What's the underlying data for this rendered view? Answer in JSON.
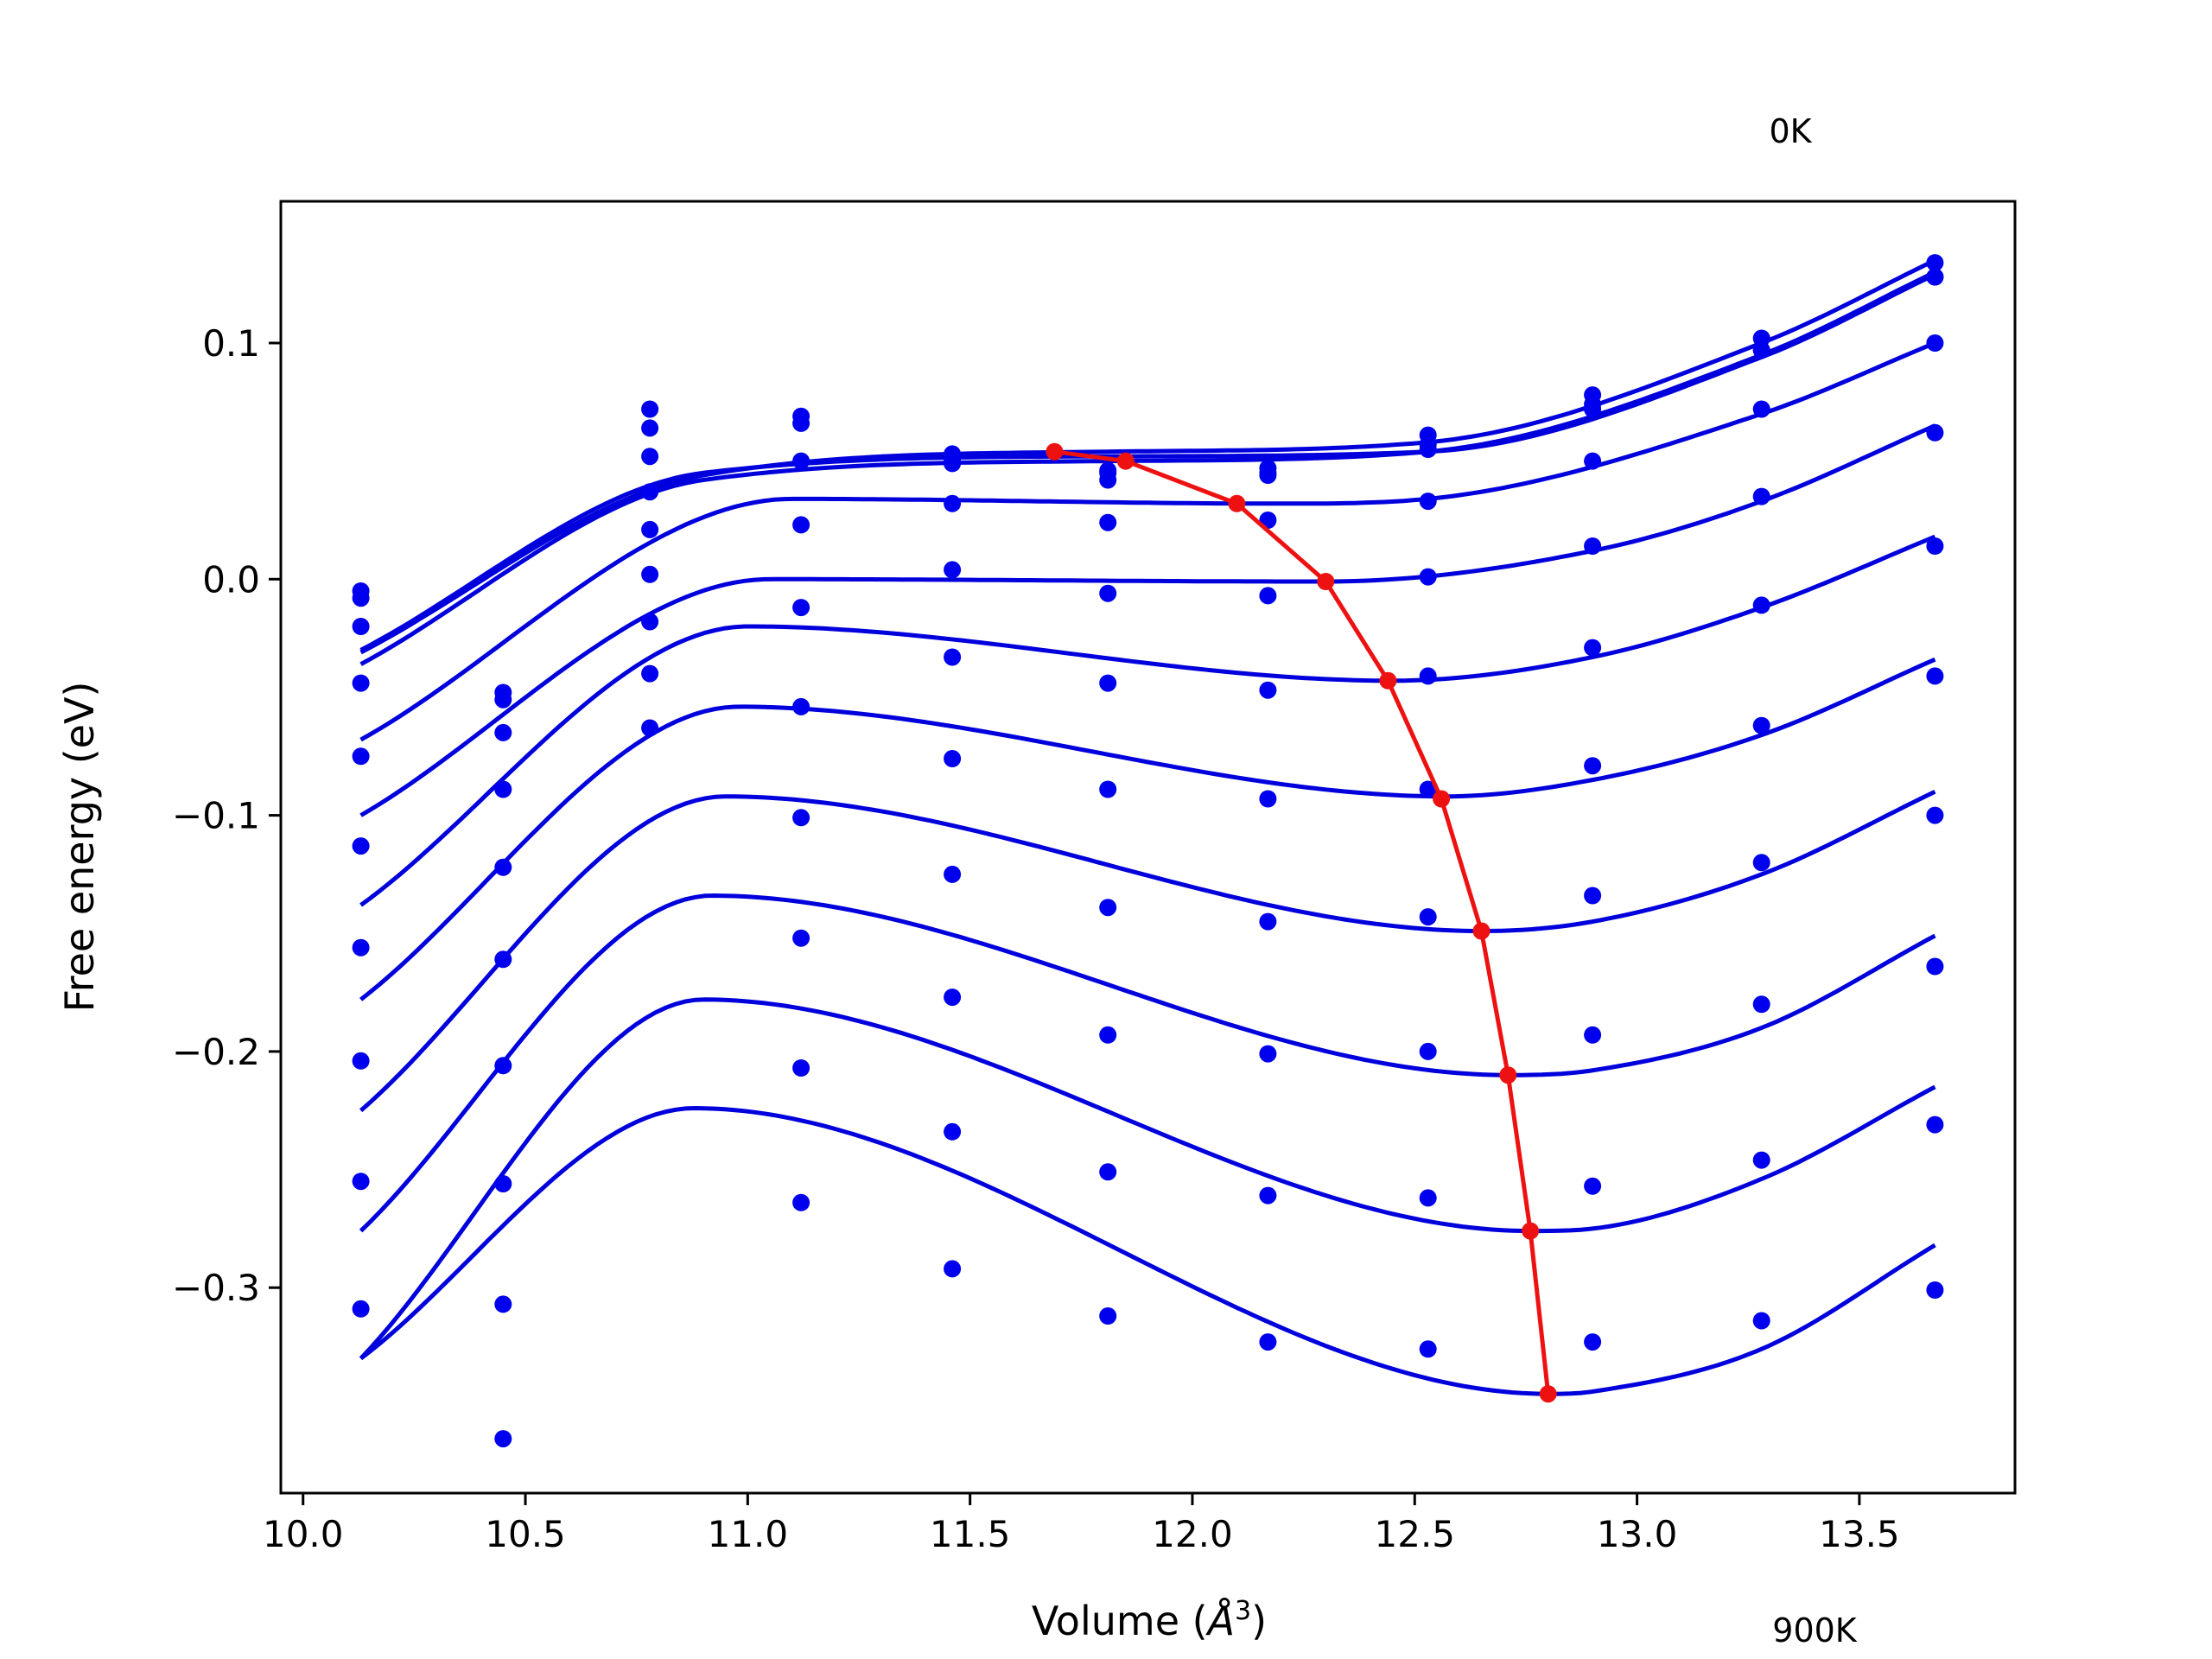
{
  "chart_data": {
    "type": "scatter",
    "xlabel_prefix": "Volume (",
    "xlabel_unit": "Å",
    "xlabel_exp": "3",
    "xlabel_suffix": ")",
    "ylabel": "Free energy (eV)",
    "xlim": [
      9.95,
      13.85
    ],
    "ylim": [
      -0.387,
      0.16
    ],
    "xticks": [
      10.0,
      10.5,
      11.0,
      11.5,
      12.0,
      12.5,
      13.0,
      13.5
    ],
    "xtick_labels": [
      "10.0",
      "10.5",
      "11.0",
      "11.5",
      "12.0",
      "12.5",
      "13.0",
      "13.5"
    ],
    "yticks": [
      0.1,
      0.0,
      -0.1,
      -0.2,
      -0.3
    ],
    "ytick_labels": [
      "0.1",
      "0.0",
      "−0.1",
      "−0.2",
      "−0.3"
    ],
    "temperature_labels": {
      "top": "0K",
      "bottom": "900K"
    },
    "grid": false,
    "colors": {
      "points": "#0000ee",
      "fits": "#0000dd",
      "minimum": "#ee1111"
    },
    "fit_x_range": [
      10.13,
      13.67
    ],
    "volumes": [
      10.13,
      10.45,
      10.78,
      11.12,
      11.46,
      11.81,
      12.17,
      12.53,
      12.9,
      13.28,
      13.67
    ],
    "series": [
      {
        "energies": [
          -0.005,
          null,
          0.072,
          0.069,
          0.053,
          0.046,
          0.047,
          0.061,
          0.078,
          0.102,
          0.134
        ],
        "fit": {
          "points": [
            [
              10.13,
              -0.031
            ],
            [
              10.9,
              0.044
            ],
            [
              11.81,
              0.054
            ],
            [
              12.53,
              0.058
            ],
            [
              13.28,
              0.1
            ],
            [
              13.67,
              0.135
            ]
          ]
        }
      },
      {
        "energies": [
          -0.008,
          null,
          0.064,
          0.066,
          0.05,
          0.042,
          0.044,
          0.057,
          0.074,
          0.097,
          0.128
        ],
        "fit": {
          "points": [
            [
              10.13,
              -0.036
            ],
            [
              10.9,
              0.042
            ],
            [
              11.81,
              0.05
            ],
            [
              12.53,
              0.054
            ],
            [
              13.28,
              0.095
            ],
            [
              13.67,
              0.13
            ]
          ]
        }
      },
      {
        "energies": [
          -0.02,
          null,
          0.052,
          0.05,
          0.049,
          0.045,
          0.045,
          0.055,
          0.072,
          0.097,
          0.128
        ],
        "fit": {
          "points": [
            [
              10.13,
              -0.03
            ],
            [
              10.9,
              0.045
            ],
            [
              11.81,
              0.052
            ],
            [
              12.53,
              0.054
            ],
            [
              13.28,
              0.094
            ],
            [
              13.67,
              0.129
            ]
          ]
        }
      },
      {
        "energies": [
          -0.044,
          null,
          0.037,
          0.023,
          0.032,
          0.024,
          0.025,
          0.033,
          0.05,
          0.072,
          0.1
        ],
        "fit": {
          "points": [
            [
              10.13,
              -0.068
            ],
            [
              11.1,
              0.034
            ],
            [
              12.2,
              0.032
            ],
            [
              12.53,
              0.034
            ],
            [
              13.28,
              0.07
            ],
            [
              13.67,
              0.1
            ]
          ]
        }
      },
      {
        "energies": [
          -0.075,
          null,
          0.021,
          -0.012,
          0.004,
          -0.006,
          -0.007,
          0.001,
          0.014,
          0.035,
          0.062
        ],
        "fit": {
          "points": [
            [
              10.13,
              -0.1
            ],
            [
              11.05,
              0.0
            ],
            [
              12.3,
              -0.001
            ],
            [
              12.9,
              0.012
            ],
            [
              13.28,
              0.033
            ],
            [
              13.67,
              0.065
            ]
          ]
        }
      },
      {
        "energies": [
          -0.113,
          -0.048,
          0.002,
          -0.054,
          -0.033,
          -0.044,
          -0.047,
          -0.041,
          -0.029,
          -0.011,
          0.014
        ],
        "fit": {
          "points": [
            [
              10.13,
              -0.138
            ],
            [
              11.0,
              -0.02
            ],
            [
              12.45,
              -0.043
            ],
            [
              12.9,
              -0.033
            ],
            [
              13.28,
              -0.012
            ],
            [
              13.67,
              0.018
            ]
          ]
        }
      },
      {
        "energies": [
          -0.156,
          -0.051,
          -0.018,
          -0.101,
          -0.076,
          -0.089,
          -0.093,
          -0.089,
          -0.079,
          -0.062,
          -0.041
        ],
        "fit": {
          "points": [
            [
              10.13,
              -0.178
            ],
            [
              10.98,
              -0.054
            ],
            [
              12.57,
              -0.092
            ],
            [
              12.9,
              -0.085
            ],
            [
              13.28,
              -0.066
            ],
            [
              13.67,
              -0.034
            ]
          ]
        }
      },
      {
        "energies": [
          -0.204,
          -0.065,
          -0.04,
          -0.152,
          -0.125,
          -0.139,
          -0.145,
          -0.143,
          -0.134,
          -0.12,
          -0.1
        ],
        "fit": {
          "points": [
            [
              10.13,
              -0.225
            ],
            [
              10.95,
              -0.092
            ],
            [
              12.65,
              -0.149
            ],
            [
              12.9,
              -0.145
            ],
            [
              13.28,
              -0.125
            ],
            [
              13.67,
              -0.09
            ]
          ]
        }
      },
      {
        "energies": [
          -0.255,
          -0.089,
          -0.063,
          -0.207,
          -0.177,
          -0.193,
          -0.201,
          -0.2,
          -0.193,
          -0.18,
          -0.164
        ],
        "fit": {
          "points": [
            [
              10.13,
              -0.276
            ],
            [
              10.92,
              -0.134
            ],
            [
              12.71,
              -0.21
            ],
            [
              12.9,
              -0.208
            ],
            [
              13.28,
              -0.19
            ],
            [
              13.67,
              -0.151
            ]
          ]
        }
      },
      {
        "energies": [
          -0.309,
          -0.122,
          null,
          -0.264,
          -0.234,
          -0.251,
          -0.261,
          -0.262,
          -0.257,
          -0.246,
          -0.231
        ],
        "fit": {
          "points": [
            [
              10.13,
              -0.33
            ],
            [
              10.9,
              -0.178
            ],
            [
              12.76,
              -0.276
            ],
            [
              12.9,
              -0.275
            ],
            [
              13.28,
              -0.254
            ],
            [
              13.67,
              -0.215
            ]
          ]
        }
      },
      {
        "energies": [
          null,
          -0.161,
          null,
          null,
          -0.292,
          -0.312,
          -0.323,
          -0.326,
          -0.323,
          -0.314,
          -0.301
        ],
        "fit": {
          "points": [
            [
              10.13,
              -0.33
            ],
            [
              10.88,
              -0.224
            ],
            [
              12.8,
              -0.345
            ],
            [
              12.9,
              -0.344
            ],
            [
              13.28,
              -0.326
            ],
            [
              13.67,
              -0.282
            ]
          ]
        }
      },
      {
        "energies": [
          null,
          -0.206,
          null,
          null,
          null,
          null,
          null,
          null,
          null,
          null,
          null
        ]
      },
      {
        "energies": [
          null,
          -0.256,
          null,
          null,
          null,
          null,
          null,
          null,
          null,
          null,
          null
        ]
      },
      {
        "energies": [
          null,
          -0.307,
          null,
          null,
          null,
          null,
          null,
          null,
          null,
          null,
          null
        ]
      },
      {
        "energies": [
          null,
          -0.364,
          null,
          null,
          null,
          null,
          null,
          null,
          null,
          null,
          null
        ]
      }
    ],
    "minimum_line": {
      "x": [
        11.69,
        11.85,
        12.1,
        12.3,
        12.44,
        12.56,
        12.65,
        12.71,
        12.76,
        12.8
      ],
      "y": [
        0.054,
        0.05,
        0.032,
        -0.001,
        -0.043,
        -0.093,
        -0.149,
        -0.21,
        -0.276,
        -0.345
      ]
    }
  }
}
